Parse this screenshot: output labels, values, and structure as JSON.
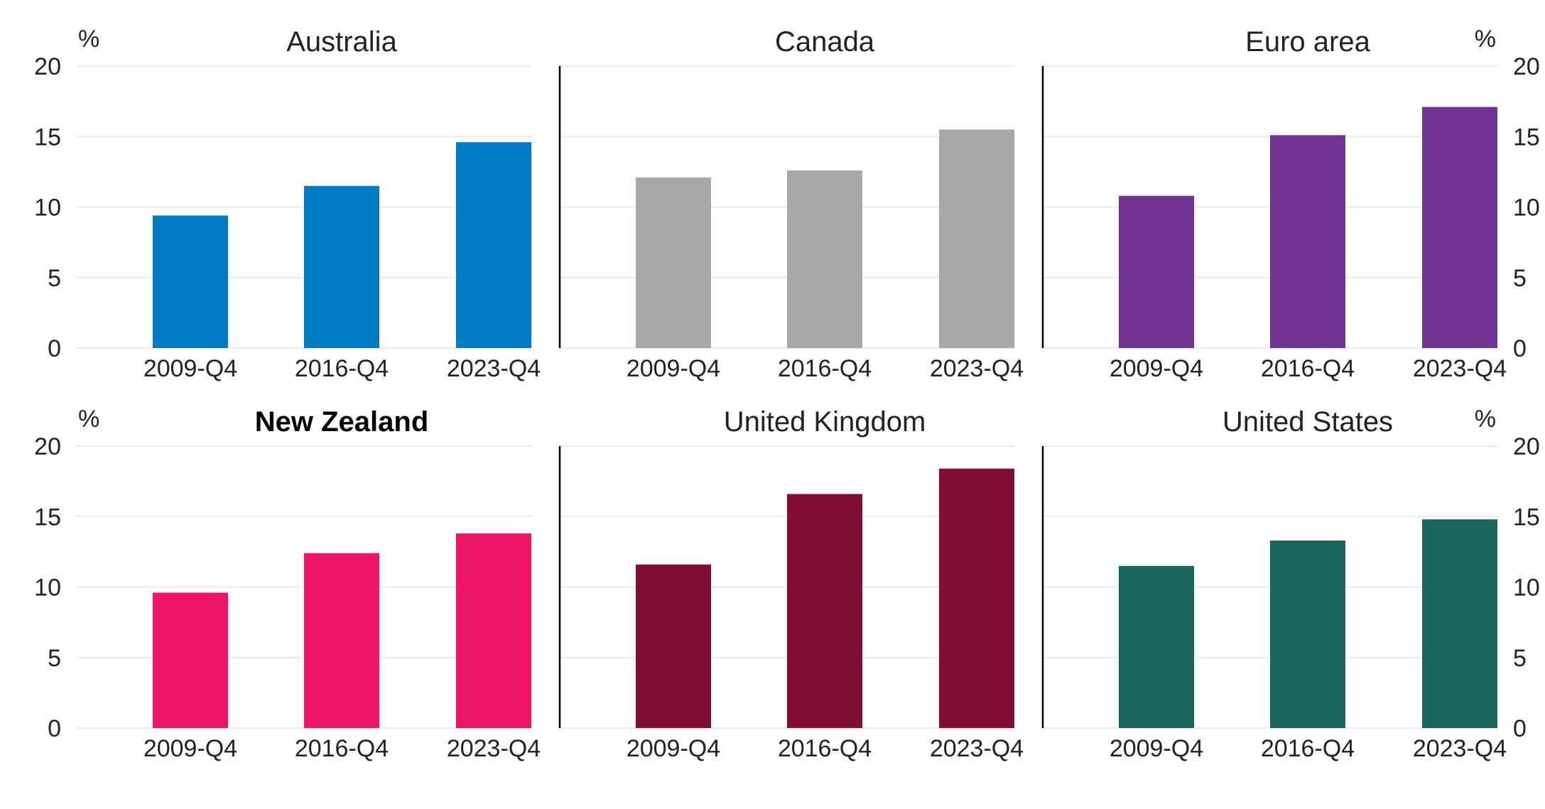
{
  "unit": "%",
  "chart_data": [
    {
      "type": "bar",
      "title": "Australia",
      "title_bold": false,
      "color": "#007BC4",
      "categories": [
        "2009-Q4",
        "2016-Q4",
        "2023-Q4"
      ],
      "values": [
        9.4,
        11.5,
        14.6
      ],
      "ylim": [
        0,
        20
      ],
      "yticks": [
        0,
        5,
        10,
        15,
        20
      ],
      "y_axis": "left",
      "grid": true
    },
    {
      "type": "bar",
      "title": "Canada",
      "title_bold": false,
      "color": "#A8A8A8",
      "categories": [
        "2009-Q4",
        "2016-Q4",
        "2023-Q4"
      ],
      "values": [
        12.1,
        12.6,
        15.5
      ],
      "ylim": [
        0,
        20
      ],
      "yticks": [
        0,
        5,
        10,
        15,
        20
      ],
      "y_axis": "none",
      "grid": true
    },
    {
      "type": "bar",
      "title": "Euro area",
      "title_bold": false,
      "color": "#703593",
      "categories": [
        "2009-Q4",
        "2016-Q4",
        "2023-Q4"
      ],
      "values": [
        10.8,
        15.1,
        17.1
      ],
      "ylim": [
        0,
        20
      ],
      "yticks": [
        0,
        5,
        10,
        15,
        20
      ],
      "y_axis": "right",
      "grid": true
    },
    {
      "type": "bar",
      "title": "New Zealand",
      "title_bold": true,
      "color": "#EE1566",
      "categories": [
        "2009-Q4",
        "2016-Q4",
        "2023-Q4"
      ],
      "values": [
        9.6,
        12.4,
        13.8
      ],
      "ylim": [
        0,
        20
      ],
      "yticks": [
        0,
        5,
        10,
        15,
        20
      ],
      "y_axis": "left",
      "grid": true
    },
    {
      "type": "bar",
      "title": "United Kingdom",
      "title_bold": false,
      "color": "#820E38",
      "categories": [
        "2009-Q4",
        "2016-Q4",
        "2023-Q4"
      ],
      "values": [
        11.6,
        16.6,
        18.4
      ],
      "ylim": [
        0,
        20
      ],
      "yticks": [
        0,
        5,
        10,
        15,
        20
      ],
      "y_axis": "none",
      "grid": true
    },
    {
      "type": "bar",
      "title": "United States",
      "title_bold": false,
      "color": "#1D665E",
      "categories": [
        "2009-Q4",
        "2016-Q4",
        "2023-Q4"
      ],
      "values": [
        11.5,
        13.3,
        14.8
      ],
      "ylim": [
        0,
        20
      ],
      "yticks": [
        0,
        5,
        10,
        15,
        20
      ],
      "y_axis": "right",
      "grid": true
    }
  ]
}
